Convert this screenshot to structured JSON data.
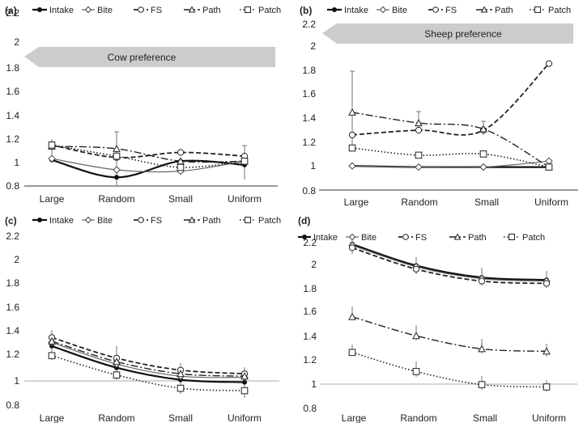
{
  "chart_data": [
    {
      "panel": "(a)",
      "type": "line",
      "categories": [
        "Large",
        "Random",
        "Small",
        "Uniform"
      ],
      "ylim": [
        0.8,
        2.2
      ],
      "yticks": [
        "0.8",
        "1",
        "1.2",
        "1.4",
        "1.6",
        "1.8",
        "2",
        "2.2"
      ],
      "annotation": "Cow preference",
      "series": [
        {
          "name": "Intake",
          "values": [
            1.01,
            0.87,
            1.0,
            0.97
          ]
        },
        {
          "name": "Bite",
          "values": [
            1.02,
            0.93,
            0.92,
            1.0
          ]
        },
        {
          "name": "FS",
          "values": [
            1.13,
            1.03,
            1.07,
            1.04
          ]
        },
        {
          "name": "Path",
          "values": [
            1.12,
            1.1,
            1.0,
            1.0
          ]
        },
        {
          "name": "Patch",
          "values": [
            1.13,
            1.04,
            0.95,
            1.0
          ]
        }
      ]
    },
    {
      "panel": "(b)",
      "type": "line",
      "categories": [
        "Large",
        "Random",
        "Small",
        "Uniform"
      ],
      "ylim": [
        0.8,
        2.2
      ],
      "yticks": [
        "0.8",
        "1",
        "1.2",
        "1.4",
        "1.6",
        "1.8",
        "2",
        "2.2"
      ],
      "annotation": "Sheep preference",
      "series": [
        {
          "name": "Intake",
          "values": [
            1.01,
            1.0,
            1.0,
            1.0
          ]
        },
        {
          "name": "Bite",
          "values": [
            1.01,
            1.0,
            1.0,
            1.05
          ]
        },
        {
          "name": "FS",
          "values": [
            1.27,
            1.31,
            1.31,
            1.87
          ]
        },
        {
          "name": "Path",
          "values": [
            1.46,
            1.37,
            1.32,
            1.0
          ]
        },
        {
          "name": "Patch",
          "values": [
            1.16,
            1.1,
            1.11,
            1.0
          ]
        }
      ]
    },
    {
      "panel": "(c)",
      "type": "line",
      "categories": [
        "Large",
        "Random",
        "Small",
        "Uniform"
      ],
      "ylim": [
        0.8,
        2.2
      ],
      "yticks": [
        "0.8",
        "1",
        "1.2",
        "1.4",
        "1.6",
        "1.8",
        "2",
        "2.2"
      ],
      "annotation": "",
      "series": [
        {
          "name": "Intake",
          "values": [
            1.29,
            1.11,
            1.01,
            0.99
          ]
        },
        {
          "name": "Bite",
          "values": [
            1.32,
            1.14,
            1.04,
            1.03
          ]
        },
        {
          "name": "FS",
          "values": [
            1.36,
            1.19,
            1.09,
            1.06
          ]
        },
        {
          "name": "Path",
          "values": [
            1.33,
            1.16,
            1.06,
            1.04
          ]
        },
        {
          "name": "Patch",
          "values": [
            1.21,
            1.05,
            0.94,
            0.92
          ]
        }
      ]
    },
    {
      "panel": "(d)",
      "type": "line",
      "categories": [
        "Large",
        "Random",
        "Small",
        "Uniform"
      ],
      "ylim": [
        0.8,
        2.2
      ],
      "yticks": [
        "0.8",
        "1",
        "1.2",
        "1.4",
        "1.6",
        "1.8",
        "2",
        "2.2"
      ],
      "annotation": "",
      "series": [
        {
          "name": "Intake",
          "values": [
            2.18,
            2.0,
            1.9,
            1.88
          ]
        },
        {
          "name": "Bite",
          "values": [
            2.17,
            1.99,
            1.89,
            1.87
          ]
        },
        {
          "name": "FS",
          "values": [
            2.15,
            1.97,
            1.87,
            1.85
          ]
        },
        {
          "name": "Path",
          "values": [
            1.57,
            1.41,
            1.3,
            1.28
          ]
        },
        {
          "name": "Patch",
          "values": [
            1.27,
            1.11,
            1.0,
            0.98
          ]
        }
      ]
    }
  ]
}
